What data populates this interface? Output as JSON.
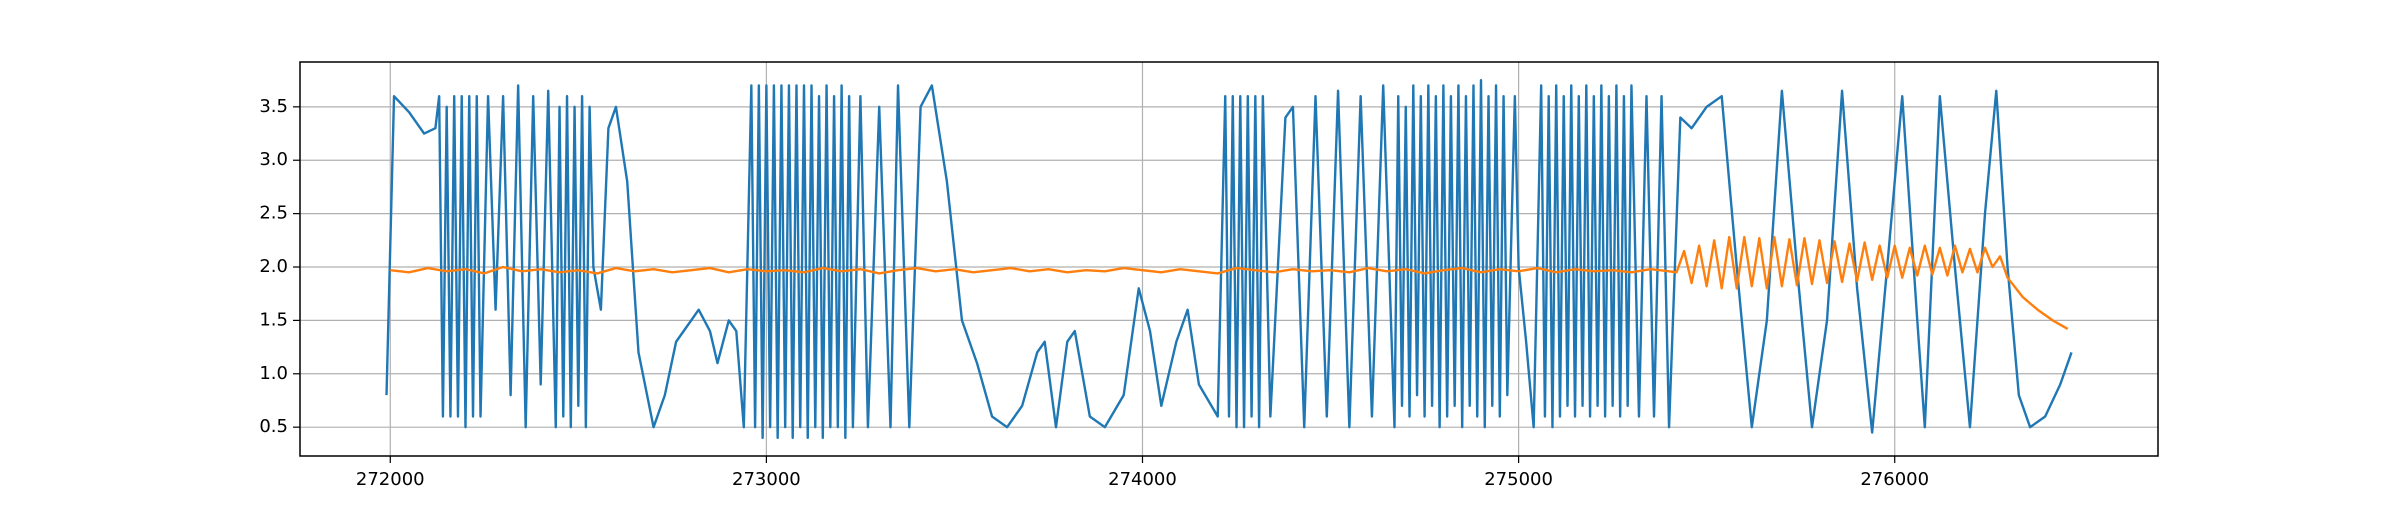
{
  "chart_data": {
    "type": "line",
    "xlim": [
      271760,
      276700
    ],
    "ylim": [
      0.23,
      3.92
    ],
    "xticks": [
      272000,
      273000,
      274000,
      275000,
      276000
    ],
    "yticks": [
      0.5,
      {
        "value": 1,
        "label": "1.0"
      },
      1.5,
      {
        "value": 2,
        "label": "2.0"
      },
      2.5,
      {
        "value": 3,
        "label": "3.0"
      },
      3.5
    ],
    "grid": true,
    "series": [
      {
        "color": "#1f77b4",
        "x": [
          271990,
          272010,
          272050,
          272090,
          272120,
          272130,
          272140,
          272150,
          272160,
          272170,
          272180,
          272190,
          272200,
          272210,
          272220,
          272230,
          272240,
          272260,
          272280,
          272300,
          272320,
          272340,
          272360,
          272380,
          272400,
          272420,
          272440,
          272450,
          272460,
          272470,
          272480,
          272490,
          272500,
          272510,
          272520,
          272530,
          272540,
          272560,
          272580,
          272600,
          272630,
          272660,
          272700,
          272730,
          272760,
          272800,
          272820,
          272850,
          272870,
          272900,
          272920,
          272940,
          272960,
          272970,
          272980,
          272990,
          273000,
          273010,
          273020,
          273030,
          273040,
          273050,
          273060,
          273070,
          273080,
          273090,
          273100,
          273110,
          273120,
          273130,
          273140,
          273150,
          273160,
          273170,
          273180,
          273190,
          273200,
          273210,
          273220,
          273230,
          273250,
          273270,
          273300,
          273330,
          273350,
          273380,
          273410,
          273440,
          273480,
          273520,
          273560,
          273600,
          273640,
          273680,
          273720,
          273740,
          273770,
          273800,
          273820,
          273860,
          273900,
          273950,
          273990,
          274020,
          274050,
          274090,
          274120,
          274150,
          274200,
          274220,
          274230,
          274240,
          274250,
          274260,
          274270,
          274280,
          274290,
          274300,
          274310,
          274320,
          274340,
          274380,
          274400,
          274430,
          274460,
          274490,
          274520,
          274550,
          274580,
          274610,
          274640,
          274670,
          274680,
          274690,
          274700,
          274710,
          274720,
          274730,
          274740,
          274750,
          274760,
          274770,
          274780,
          274790,
          274800,
          274810,
          274820,
          274830,
          274840,
          274850,
          274860,
          274870,
          274880,
          274890,
          274900,
          274910,
          274920,
          274930,
          274940,
          274950,
          274960,
          274970,
          274990,
          275000,
          275020,
          275040,
          275060,
          275070,
          275080,
          275090,
          275100,
          275110,
          275120,
          275130,
          275140,
          275150,
          275160,
          275170,
          275180,
          275190,
          275200,
          275210,
          275220,
          275230,
          275240,
          275250,
          275260,
          275270,
          275280,
          275290,
          275300,
          275320,
          275340,
          275360,
          275380,
          275400,
          275430,
          275460,
          275500,
          275540,
          275580,
          275620,
          275660,
          275700,
          275740,
          275780,
          275820,
          275860,
          275900,
          275940,
          275980,
          276020,
          276060,
          276080,
          276120,
          276160,
          276200,
          276240,
          276270,
          276300,
          276330,
          276360,
          276400,
          276440,
          276470
        ],
        "values": [
          0.8,
          3.6,
          3.45,
          3.25,
          3.3,
          3.6,
          0.6,
          3.5,
          0.6,
          3.6,
          0.6,
          3.6,
          0.5,
          3.6,
          0.6,
          3.6,
          0.6,
          3.6,
          1.6,
          3.6,
          0.8,
          3.7,
          0.5,
          3.6,
          0.9,
          3.65,
          0.5,
          3.5,
          0.6,
          3.6,
          0.5,
          3.5,
          0.7,
          3.6,
          0.5,
          3.5,
          2.0,
          1.6,
          3.3,
          3.5,
          2.8,
          1.2,
          0.5,
          0.8,
          1.3,
          1.5,
          1.6,
          1.4,
          1.1,
          1.5,
          1.4,
          0.5,
          3.7,
          0.5,
          3.7,
          0.4,
          3.7,
          0.5,
          3.7,
          0.4,
          3.7,
          0.5,
          3.7,
          0.4,
          3.7,
          0.5,
          3.7,
          0.4,
          3.7,
          0.5,
          3.6,
          0.4,
          3.7,
          0.5,
          3.6,
          0.5,
          3.7,
          0.4,
          3.6,
          0.5,
          3.6,
          0.5,
          3.5,
          0.5,
          3.7,
          0.5,
          3.5,
          3.7,
          2.8,
          1.5,
          1.1,
          0.6,
          0.5,
          0.7,
          1.2,
          1.3,
          0.5,
          1.3,
          1.4,
          0.6,
          0.5,
          0.8,
          1.8,
          1.4,
          0.7,
          1.3,
          1.6,
          0.9,
          0.6,
          3.6,
          0.6,
          3.6,
          0.5,
          3.6,
          0.5,
          3.6,
          0.6,
          3.6,
          0.5,
          3.6,
          0.6,
          3.4,
          3.5,
          0.5,
          3.6,
          0.6,
          3.65,
          0.5,
          3.6,
          0.6,
          3.7,
          0.5,
          3.6,
          0.7,
          3.5,
          0.6,
          3.7,
          0.8,
          3.6,
          0.6,
          3.7,
          0.7,
          3.6,
          0.5,
          3.7,
          0.6,
          3.6,
          0.7,
          3.7,
          0.5,
          3.6,
          0.7,
          3.7,
          0.6,
          3.75,
          0.5,
          3.6,
          0.7,
          3.7,
          0.6,
          3.6,
          0.8,
          3.6,
          2.0,
          1.3,
          0.5,
          3.7,
          0.6,
          3.6,
          0.5,
          3.7,
          0.6,
          3.6,
          0.7,
          3.7,
          0.6,
          3.6,
          0.7,
          3.7,
          0.6,
          3.6,
          0.7,
          3.7,
          0.6,
          3.6,
          0.7,
          3.7,
          0.6,
          3.6,
          0.7,
          3.7,
          0.6,
          3.6,
          0.6,
          3.6,
          0.5,
          3.4,
          3.3,
          3.5,
          3.6,
          2.0,
          0.5,
          1.5,
          3.65,
          2.0,
          0.5,
          1.5,
          3.65,
          1.8,
          0.45,
          2.0,
          3.6,
          1.5,
          0.5,
          3.6,
          2.0,
          0.5,
          2.5,
          3.65,
          2.0,
          0.8,
          0.5,
          0.6,
          0.9,
          1.2
        ]
      },
      {
        "color": "#ff7f0e",
        "x": [
          272000,
          272050,
          272100,
          272150,
          272200,
          272250,
          272300,
          272350,
          272400,
          272450,
          272500,
          272550,
          272600,
          272650,
          272700,
          272750,
          272800,
          272850,
          272900,
          272950,
          273000,
          273050,
          273100,
          273150,
          273200,
          273250,
          273300,
          273350,
          273400,
          273450,
          273500,
          273550,
          273600,
          273650,
          273700,
          273750,
          273800,
          273850,
          273900,
          273950,
          274000,
          274050,
          274100,
          274150,
          274200,
          274250,
          274300,
          274350,
          274400,
          274450,
          274500,
          274550,
          274600,
          274650,
          274700,
          274750,
          274800,
          274850,
          274900,
          274950,
          275000,
          275050,
          275100,
          275150,
          275200,
          275250,
          275300,
          275350,
          275400,
          275420,
          275440,
          275460,
          275480,
          275500,
          275520,
          275540,
          275560,
          275580,
          275600,
          275620,
          275640,
          275660,
          275680,
          275700,
          275720,
          275740,
          275760,
          275780,
          275800,
          275820,
          275840,
          275860,
          275880,
          275900,
          275920,
          275940,
          275960,
          275980,
          276000,
          276020,
          276040,
          276060,
          276080,
          276100,
          276120,
          276140,
          276160,
          276180,
          276200,
          276220,
          276240,
          276260,
          276280,
          276300,
          276340,
          276380,
          276420,
          276460
        ],
        "values": [
          1.97,
          1.95,
          1.99,
          1.96,
          1.98,
          1.94,
          2.0,
          1.96,
          1.98,
          1.95,
          1.97,
          1.94,
          1.99,
          1.96,
          1.98,
          1.95,
          1.97,
          1.99,
          1.95,
          1.98,
          1.96,
          1.97,
          1.95,
          1.99,
          1.96,
          1.98,
          1.94,
          1.97,
          1.99,
          1.96,
          1.98,
          1.95,
          1.97,
          1.99,
          1.96,
          1.98,
          1.95,
          1.97,
          1.96,
          1.99,
          1.97,
          1.95,
          1.98,
          1.96,
          1.94,
          1.99,
          1.97,
          1.95,
          1.98,
          1.96,
          1.97,
          1.95,
          1.99,
          1.96,
          1.98,
          1.94,
          1.97,
          1.99,
          1.95,
          1.98,
          1.96,
          1.99,
          1.95,
          1.98,
          1.96,
          1.97,
          1.95,
          1.98,
          1.96,
          1.95,
          2.15,
          1.85,
          2.2,
          1.82,
          2.25,
          1.8,
          2.28,
          1.8,
          2.28,
          1.82,
          2.27,
          1.8,
          2.28,
          1.82,
          2.26,
          1.83,
          2.27,
          1.84,
          2.25,
          1.85,
          2.24,
          1.86,
          2.22,
          1.87,
          2.23,
          1.88,
          2.2,
          1.9,
          2.2,
          1.9,
          2.18,
          1.92,
          2.2,
          1.93,
          2.18,
          1.92,
          2.2,
          1.95,
          2.17,
          1.95,
          2.18,
          2.0,
          2.1,
          1.9,
          1.72,
          1.6,
          1.5,
          1.42
        ]
      }
    ]
  }
}
